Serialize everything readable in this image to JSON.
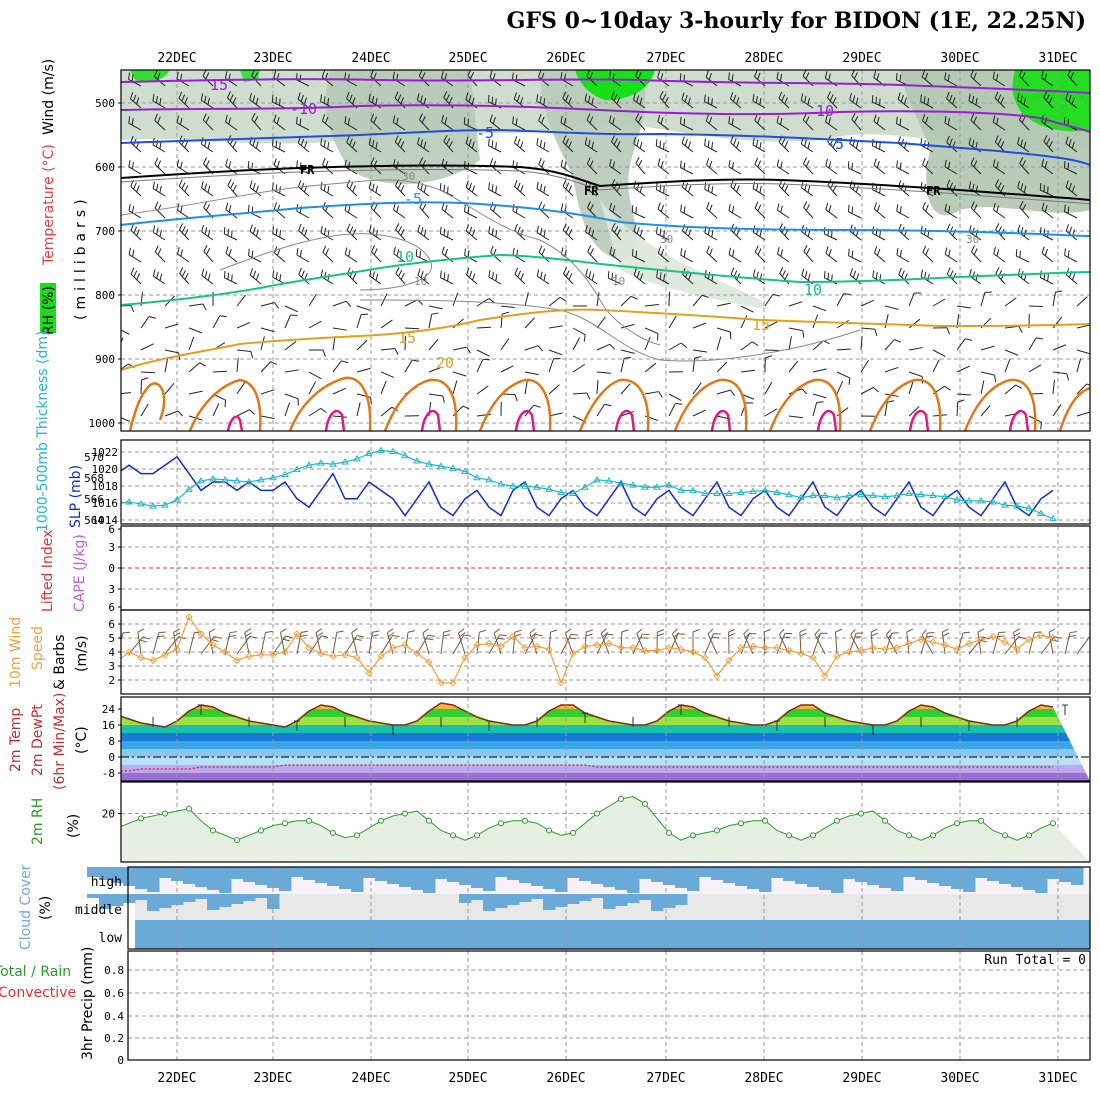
{
  "title": "GFS 0~10day 3-hourly for BIDON (1E, 22.25N)",
  "dates": [
    "22DEC",
    "23DEC",
    "24DEC",
    "25DEC",
    "26DEC",
    "27DEC",
    "28DEC",
    "29DEC",
    "30DEC",
    "31DEC"
  ],
  "colors": {
    "temp_magenta": "#9a1fd0",
    "temp_blue": "#1f4fe0",
    "temp_black": "#000000",
    "temp_azure": "#1e90e8",
    "temp_teal": "#18c08a",
    "temp_orange": "#e0a020",
    "temp_dkorange": "#e07818",
    "temp_pink": "#e01888",
    "slp": "#1030c0",
    "thickness": "#20b8c8",
    "wind10": "#f0a040",
    "rh2m": "#2a9a2a",
    "cloud": "#6aaad8",
    "rh_green": "#18e018",
    "rh_gray": "#c8d8c8"
  },
  "panels": {
    "upper": {
      "labels": {
        "rh": "RH (%)",
        "temperature": "Temperature (°C)",
        "wind": "Wind (m/s)",
        "pressure": "(millibars)"
      },
      "y_ticks": [
        "500",
        "600",
        "700",
        "800",
        "900",
        "1000"
      ],
      "contour_labels": [
        "15",
        "-10",
        "10",
        "-5",
        "-5",
        "FR",
        "FR",
        "FR",
        "-5",
        "10",
        "10",
        "15",
        "15",
        "20",
        "30",
        "30",
        "30",
        "10",
        "10"
      ]
    },
    "slp_thickness": {
      "labels": {
        "thickness": "1000-500mb Thickness (dm)",
        "slp": "SLP (mb)"
      },
      "left_ticks": [
        "570",
        "568",
        "566",
        "564"
      ],
      "right_ticks": [
        "1022",
        "1020",
        "1018",
        "1016",
        "1014"
      ]
    },
    "stability": {
      "labels": {
        "lifted": "Lifted Index",
        "cape": "CAPE (J/kg)"
      },
      "ticks": [
        "6",
        "3",
        "0",
        "3",
        "6"
      ]
    },
    "wind10m": {
      "labels": {
        "line1": "10m Wind",
        "line2": "Speed",
        "line3": "& Barbs",
        "unit": "(m/s)"
      },
      "ticks": [
        "6",
        "5",
        "4",
        "3",
        "2"
      ]
    },
    "temp2m": {
      "labels": {
        "line1": "2m Temp",
        "line2": "2m DewPt",
        "line3": "(6hr Min/Max)",
        "unit": "(°C)"
      },
      "ticks": [
        "24",
        "16",
        "8",
        "0",
        "-8"
      ]
    },
    "rh2m": {
      "labels": {
        "line1": "2m RH",
        "unit": "(%)"
      },
      "ticks": [
        "20"
      ]
    },
    "cloud": {
      "labels": {
        "line1": "Cloud Cover",
        "unit": "(%)"
      },
      "levels": [
        "high",
        "middle",
        "low"
      ]
    },
    "precip": {
      "labels": {
        "total": "Total / Rain",
        "convective": "Convective",
        "axis": "3hr Precip (mm)"
      },
      "ticks": [
        "0.8",
        "0.6",
        "0.4",
        "0.2",
        "0"
      ],
      "run_total": "Run Total = 0"
    }
  },
  "chart_data": [
    {
      "type": "line",
      "title": "1000-500mb Thickness (dm) / SLP (mb)",
      "x_step_hours": 3,
      "series": [
        {
          "name": "SLP (mb)",
          "values": [
            1020,
            1019,
            1020,
            1021,
            1020,
            1020,
            1021,
            1022,
            1020,
            1018,
            1019,
            1019,
            1018,
            1019,
            1018,
            1018,
            1019,
            1017,
            1016,
            1018,
            1020,
            1017,
            1017,
            1019,
            1018,
            1017,
            1015,
            1017,
            1019,
            1016,
            1015,
            1017,
            1018,
            1016,
            1015,
            1018,
            1019,
            1016,
            1015,
            1017,
            1018,
            1016,
            1015,
            1017,
            1019,
            1016,
            1015,
            1017,
            1018,
            1016,
            1015,
            1017,
            1019,
            1016,
            1015,
            1017,
            1018,
            1016,
            1015,
            1017,
            1019,
            1016,
            1015,
            1017,
            1018,
            1016,
            1015,
            1017,
            1019,
            1016,
            1015,
            1017,
            1018,
            1016,
            1015,
            1017,
            1019,
            1016,
            1015,
            1017,
            1018
          ],
          "ylim": [
            1014,
            1024
          ]
        },
        {
          "name": "1000-500mb Thickness (dm)",
          "values": [
            565.3,
            565.5,
            565.5,
            565.6,
            565.4,
            565.2,
            565.3,
            565.8,
            566.8,
            567.6,
            567.8,
            567.7,
            567.6,
            567.5,
            567.7,
            567.9,
            568.2,
            568.7,
            569.1,
            569.3,
            569.2,
            569.4,
            569.7,
            570.2,
            570.5,
            570.4,
            570.0,
            569.5,
            569.2,
            569.0,
            568.8,
            568.5,
            567.9,
            567.7,
            567.3,
            567.1,
            567.1,
            567.0,
            566.8,
            566.5,
            566.4,
            567.0,
            567.7,
            567.6,
            567.4,
            567.2,
            567.0,
            567.0,
            567.2,
            566.7,
            566.7,
            566.4,
            566.4,
            566.4,
            566.5,
            566.6,
            566.7,
            566.5,
            566.3,
            566.0,
            566.2,
            566.2,
            566.0,
            566.2,
            566.3,
            566.2,
            566.1,
            566.2,
            566.4,
            566.3,
            566.2,
            566.1,
            565.8,
            565.7,
            565.7,
            565.6,
            565.3,
            565.2,
            565.0,
            564.5,
            564.0
          ],
          "ylim": [
            563.5,
            571.5
          ]
        }
      ]
    },
    {
      "type": "line",
      "title": "10m Wind Speed (m/s)",
      "x_step_hours": 3,
      "series": [
        {
          "name": "10m Wind Speed",
          "values": [
            3.3,
            3.4,
            3.3,
            4.0,
            3.6,
            3.4,
            3.8,
            4.2,
            6.5,
            5.3,
            4.5,
            4.0,
            3.4,
            3.7,
            3.8,
            3.8,
            4.0,
            5.3,
            4.3,
            3.9,
            3.7,
            3.8,
            3.6,
            2.5,
            3.7,
            4.3,
            4.5,
            3.9,
            3.3,
            1.8,
            1.8,
            3.6,
            4.5,
            4.6,
            4.4,
            5.1,
            4.3,
            4.4,
            4.2,
            1.8,
            3.9,
            4.4,
            4.5,
            4.6,
            4.3,
            4.3,
            4.1,
            4.1,
            4.3,
            4.2,
            4.0,
            3.6,
            2.3,
            3.4,
            4.3,
            4.4,
            4.3,
            4.3,
            4.1,
            3.9,
            3.6,
            2.3,
            3.7,
            4.0,
            4.1,
            4.3,
            4.2,
            4.3,
            4.6,
            4.9,
            4.7,
            4.5,
            4.2,
            4.6,
            4.9,
            5.1,
            4.7,
            4.2,
            4.9,
            5.2,
            5.0
          ],
          "ylim": [
            1,
            7
          ]
        }
      ]
    },
    {
      "type": "area",
      "title": "2m Temp / 2m DewPt (°C)",
      "x_step_hours": 3,
      "series": [
        {
          "name": "2m Temp",
          "values": [
            22,
            23,
            21,
            19,
            17,
            16,
            15,
            18,
            23,
            26,
            25,
            22,
            20,
            18,
            17,
            16,
            15,
            18,
            23,
            26,
            25,
            22,
            20,
            18,
            17,
            16,
            16,
            18,
            23,
            27,
            26,
            23,
            20,
            18,
            17,
            16,
            16,
            18,
            23,
            26,
            26,
            22,
            20,
            18,
            17,
            16,
            16,
            18,
            23,
            26,
            25,
            22,
            20,
            18,
            17,
            16,
            16,
            18,
            23,
            26,
            26,
            22,
            20,
            18,
            17,
            16,
            16,
            18,
            23,
            26,
            25,
            22,
            20,
            18,
            17,
            16,
            16,
            18,
            23,
            26,
            25
          ],
          "ylim": [
            -12,
            30
          ]
        },
        {
          "name": "2m DewPt",
          "values": [
            -7,
            -7,
            -7,
            -7,
            -6,
            -6,
            -6,
            -6,
            -6,
            -5,
            -5,
            -5,
            -5,
            -5,
            -5,
            -5,
            -4,
            -4,
            -4,
            -4,
            -4,
            -4,
            -4,
            -4,
            -4,
            -4,
            -4,
            -4,
            -4,
            -4,
            -4,
            -4,
            -4,
            -4,
            -4,
            -4,
            -4,
            -4,
            -4,
            -4,
            -4,
            -4,
            -5,
            -5,
            -5,
            -5,
            -5,
            -5,
            -5,
            -5,
            -5,
            -5,
            -5,
            -5,
            -5,
            -5,
            -5,
            -5,
            -5,
            -5,
            -5,
            -5,
            -5,
            -5,
            -5,
            -5,
            -5,
            -5,
            -5,
            -5,
            -5,
            -5,
            -5,
            -5,
            -5,
            -5,
            -5,
            -5,
            -5,
            -5,
            -5
          ]
        }
      ]
    },
    {
      "type": "line",
      "title": "2m RH (%)",
      "x_step_hours": 3,
      "series": [
        {
          "name": "2m RH",
          "values": [
            15,
            13,
            14,
            16,
            18,
            19,
            20,
            21,
            22,
            17,
            13,
            11,
            9,
            11,
            13,
            15,
            16,
            17,
            17,
            15,
            12,
            10,
            11,
            14,
            17,
            19,
            20,
            21,
            17,
            13,
            11,
            9,
            11,
            14,
            16,
            17,
            17,
            16,
            13,
            11,
            12,
            16,
            20,
            23,
            26,
            27,
            24,
            18,
            12,
            9,
            11,
            12,
            13,
            15,
            16,
            17,
            17,
            13,
            11,
            9,
            11,
            14,
            17,
            19,
            20,
            21,
            17,
            13,
            11,
            9,
            11,
            14,
            16,
            17,
            17,
            13,
            11,
            9,
            11,
            14,
            16
          ],
          "ylim": [
            0,
            33
          ]
        }
      ]
    },
    {
      "type": "table",
      "title": "3hr Precip (mm)",
      "x_step_hours": 3,
      "series": [
        {
          "name": "3hr Precip",
          "values": []
        }
      ],
      "ylim": [
        0,
        0.95
      ]
    }
  ]
}
